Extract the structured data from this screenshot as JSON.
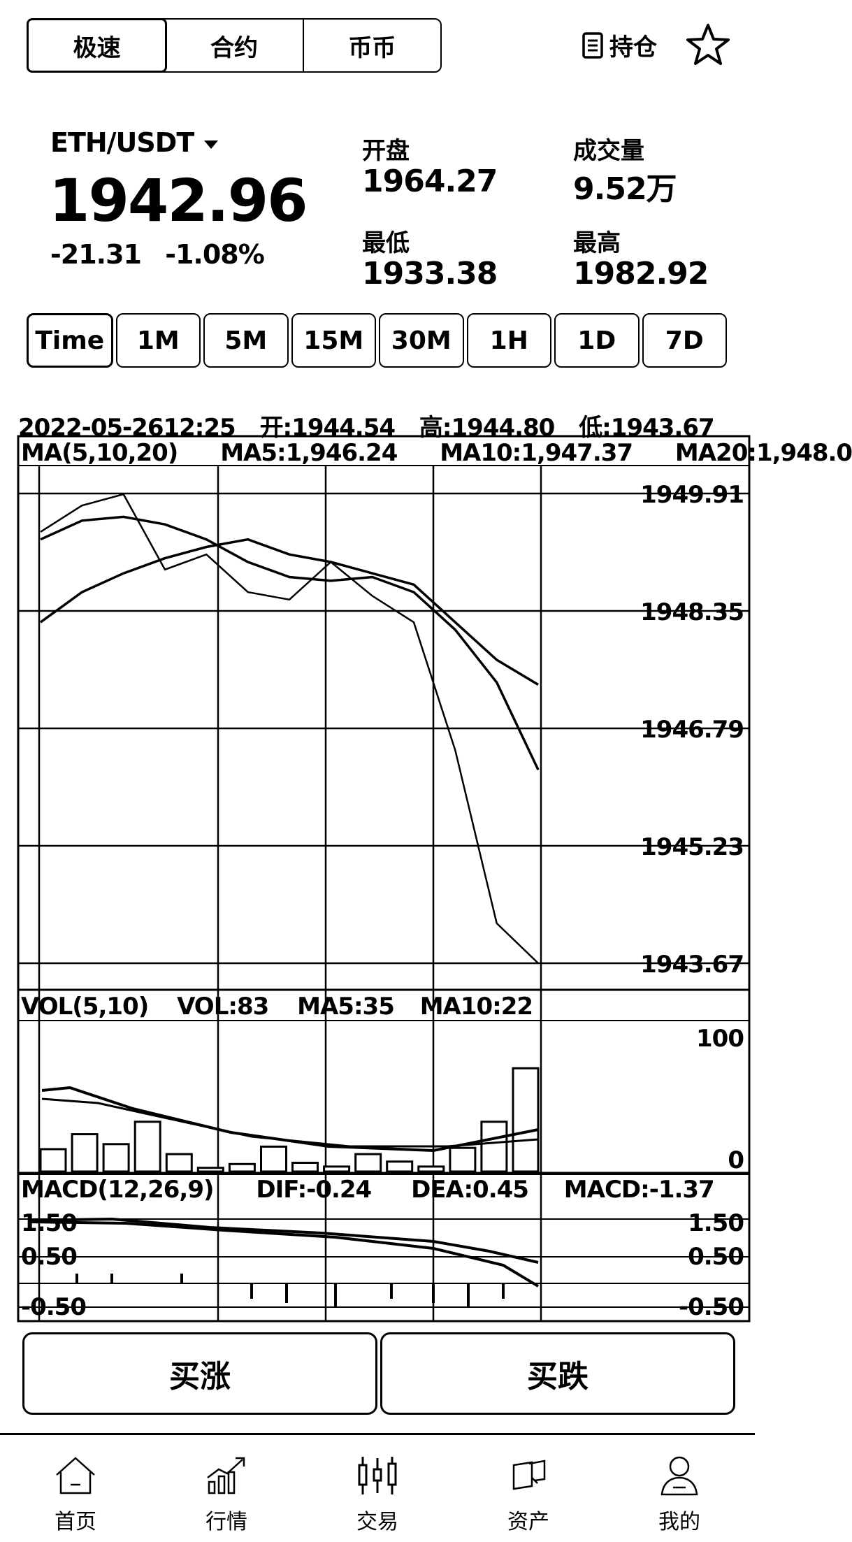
{
  "tabs": [
    {
      "label": "极速"
    },
    {
      "label": "合约"
    },
    {
      "label": "币币"
    }
  ],
  "holdings_label": "持仓",
  "ticker": {
    "pair": "ETH/USDT",
    "price": "1942.96",
    "change": "-21.31",
    "change_pct": "-1.08%",
    "open_label": "开盘",
    "open": "1964.27",
    "low_label": "最低",
    "low": "1933.38",
    "volume_label": "成交量",
    "volume": "9.52万",
    "high_label": "最高",
    "high": "1982.92"
  },
  "timeframes": [
    {
      "label": "Time"
    },
    {
      "label": "1M"
    },
    {
      "label": "5M"
    },
    {
      "label": "15M"
    },
    {
      "label": "30M"
    },
    {
      "label": "1H"
    },
    {
      "label": "1D"
    },
    {
      "label": "7D"
    }
  ],
  "kline_info": {
    "datetime": "2022-05-2612:25",
    "open": "开:1944.54",
    "high": "高:1944.80",
    "low": "低:1943.67",
    "ma_title": "MA(5,10,20)",
    "ma5": "MA5:1,946.24",
    "ma10": "MA10:1,947.37",
    "ma20": "MA20:1,948.0"
  },
  "vol_info": {
    "title": "VOL(5,10)",
    "vol": "VOL:83",
    "ma5": "MA5:35",
    "ma10": "MA10:22"
  },
  "macd_info": {
    "title": "MACD(12,26,9)",
    "dif": "DIF:-0.24",
    "dea": "DEA:0.45",
    "macd": "MACD:-1.37"
  },
  "chart_data": [
    {
      "type": "line",
      "name": "price",
      "y_ticks": [
        "1949.91",
        "1948.35",
        "1946.79",
        "1945.23",
        "1943.67"
      ],
      "ylim": [
        1943.67,
        1949.91
      ],
      "series": [
        {
          "values": [
            1949.4,
            1949.75,
            1949.9,
            1948.9,
            1949.1,
            1948.6,
            1948.5,
            1949.0,
            1948.55,
            1948.2,
            1946.5,
            1944.2,
            1943.67
          ]
        },
        {
          "values": [
            1949.3,
            1949.55,
            1949.6,
            1949.5,
            1949.3,
            1949.0,
            1948.8,
            1948.75,
            1948.8,
            1948.6,
            1948.1,
            1947.4,
            1946.24
          ]
        },
        {
          "values": [
            1948.2,
            1948.6,
            1948.85,
            1949.05,
            1949.2,
            1949.3,
            1949.1,
            1949.0,
            1948.85,
            1948.7,
            1948.2,
            1947.7,
            1947.37
          ]
        },
        {
          "values": null
        }
      ]
    },
    {
      "type": "bar",
      "name": "volume",
      "y_ticks": [
        "100",
        "0"
      ],
      "ylim": [
        0,
        100
      ],
      "values": [
        18,
        30,
        22,
        40,
        14,
        3,
        6,
        20,
        7,
        4,
        14,
        8,
        4,
        19,
        40,
        83
      ]
    },
    {
      "type": "line",
      "name": "macd",
      "y_ticks": [
        "1.50",
        "0.50",
        "-0.50"
      ],
      "ylim": [
        -1.5,
        2.0
      ]
    }
  ],
  "actions": {
    "buy_up": "买涨",
    "buy_down": "买跌"
  },
  "nav": [
    {
      "label": "首页",
      "icon": "home-icon"
    },
    {
      "label": "行情",
      "icon": "market-chart-icon"
    },
    {
      "label": "交易",
      "icon": "trade-candles-icon"
    },
    {
      "label": "资产",
      "icon": "assets-icon"
    },
    {
      "label": "我的",
      "icon": "profile-icon"
    }
  ]
}
